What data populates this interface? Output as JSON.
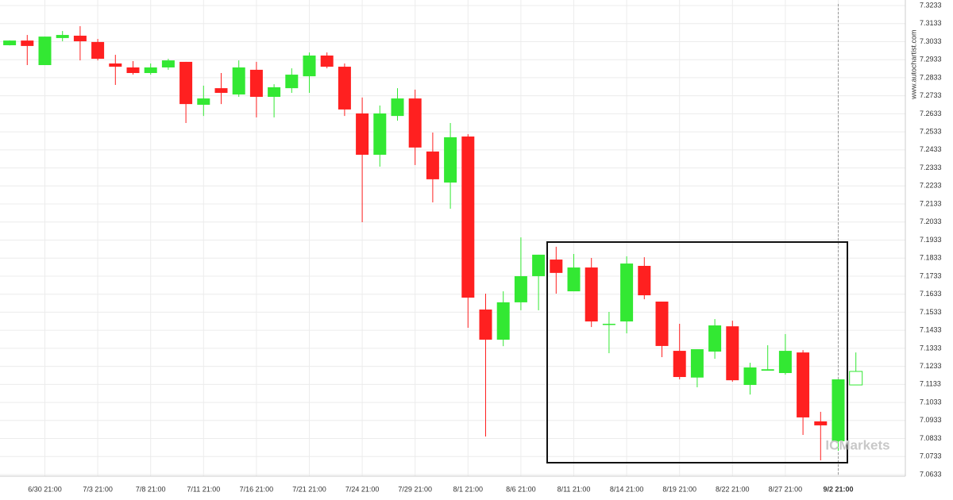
{
  "chart_data": {
    "type": "candlestick",
    "categories": [
      null,
      null,
      "6/30 21:00",
      null,
      null,
      "7/3 21:00",
      null,
      null,
      "7/8 21:00",
      null,
      null,
      "7/11 21:00",
      null,
      null,
      "7/16 21:00",
      null,
      null,
      "7/21 21:00",
      null,
      null,
      "7/24 21:00",
      null,
      null,
      "7/29 21:00",
      null,
      null,
      "8/1 21:00",
      null,
      null,
      "8/6 21:00",
      null,
      null,
      "8/11 21:00",
      null,
      null,
      "8/14 21:00",
      null,
      null,
      "8/19 21:00",
      null,
      null,
      "8/22 21:00",
      null,
      null,
      "8/27 21:00",
      null,
      null,
      "9/2 21:00",
      null
    ],
    "open": [
      7.3013,
      7.3039,
      7.2903,
      7.3053,
      7.3066,
      7.3031,
      7.2912,
      7.289,
      7.2859,
      7.289,
      7.2921,
      7.2683,
      7.2775,
      7.274,
      7.2877,
      7.2727,
      7.2775,
      7.2841,
      7.2956,
      7.2894,
      7.2635,
      7.2406,
      7.2621,
      7.2718,
      7.2424,
      7.2252,
      7.2507,
      7.1548,
      7.1381,
      7.1588,
      7.1733,
      7.1825,
      7.1649,
      7.1781,
      7.1468,
      7.1482,
      7.179,
      7.1592,
      7.1319,
      7.1171,
      7.1315,
      7.1455,
      7.113,
      7.1209,
      7.1196,
      7.131,
      7.0928,
      7.0818,
      7.113
    ],
    "high": [
      7.304,
      7.307,
      7.3061,
      7.3092,
      7.3119,
      7.3048,
      7.296,
      7.2925,
      7.2912,
      7.2938,
      7.2921,
      7.2789,
      7.2859,
      7.2929,
      7.2921,
      7.2797,
      7.2885,
      7.2973,
      7.2973,
      7.2912,
      7.2723,
      7.2679,
      7.2775,
      7.2767,
      7.2529,
      7.2582,
      7.252,
      7.1636,
      7.1649,
      7.1948,
      7.1852,
      7.1896,
      7.1856,
      7.1834,
      7.1535,
      7.1843,
      7.1838,
      7.1592,
      7.1469,
      7.1328,
      7.1495,
      7.1486,
      7.1253,
      7.135,
      7.1412,
      7.1323,
      7.0981,
      7.1161,
      7.131
    ],
    "low": [
      7.3012,
      7.2903,
      7.2903,
      7.3035,
      7.2929,
      7.2929,
      7.2793,
      7.285,
      7.285,
      7.2877,
      7.2582,
      7.2621,
      7.2687,
      7.2727,
      7.2613,
      7.2613,
      7.2749,
      7.2749,
      7.2885,
      7.2621,
      7.2032,
      7.234,
      7.2595,
      7.2349,
      7.2142,
      7.2107,
      7.1447,
      7.0844,
      7.1345,
      7.1544,
      7.1544,
      7.1636,
      7.1649,
      7.1451,
      7.1306,
      7.1416,
      7.1605,
      7.1284,
      7.1161,
      7.1117,
      7.1275,
      7.1148,
      7.1077,
      7.1209,
      7.1187,
      7.0853,
      7.0712,
      7.0765,
      7.113
    ],
    "close": [
      7.3039,
      7.3009,
      7.3061,
      7.307,
      7.3035,
      7.2938,
      7.2894,
      7.2859,
      7.289,
      7.2929,
      7.2687,
      7.2718,
      7.2749,
      7.289,
      7.2727,
      7.278,
      7.285,
      7.2956,
      7.2894,
      7.2657,
      7.2406,
      7.2635,
      7.2718,
      7.2446,
      7.227,
      7.2503,
      7.1614,
      7.1381,
      7.1588,
      7.1733,
      7.1852,
      7.1751,
      7.1781,
      7.1482,
      7.1469,
      7.1803,
      7.1627,
      7.1346,
      7.1174,
      7.1328,
      7.146,
      7.1156,
      7.1227,
      7.1217,
      7.1319,
      7.095,
      7.0906,
      7.1161,
      7.1205
    ],
    "up_color": "#33e833",
    "down_color": "#ff2020",
    "ylim": [
      7.0633,
      7.3233
    ],
    "yticks": [
      7.3233,
      7.3133,
      7.3033,
      7.2933,
      7.2833,
      7.2733,
      7.2633,
      7.2533,
      7.2433,
      7.2333,
      7.2233,
      7.2133,
      7.2033,
      7.1933,
      7.1833,
      7.1733,
      7.1633,
      7.1533,
      7.1433,
      7.1333,
      7.1233,
      7.1133,
      7.1033,
      7.0933,
      7.0833,
      7.0733,
      7.0633
    ],
    "grid": true,
    "watermark": "www.autochartist.com",
    "logo": "ICMarkets"
  }
}
